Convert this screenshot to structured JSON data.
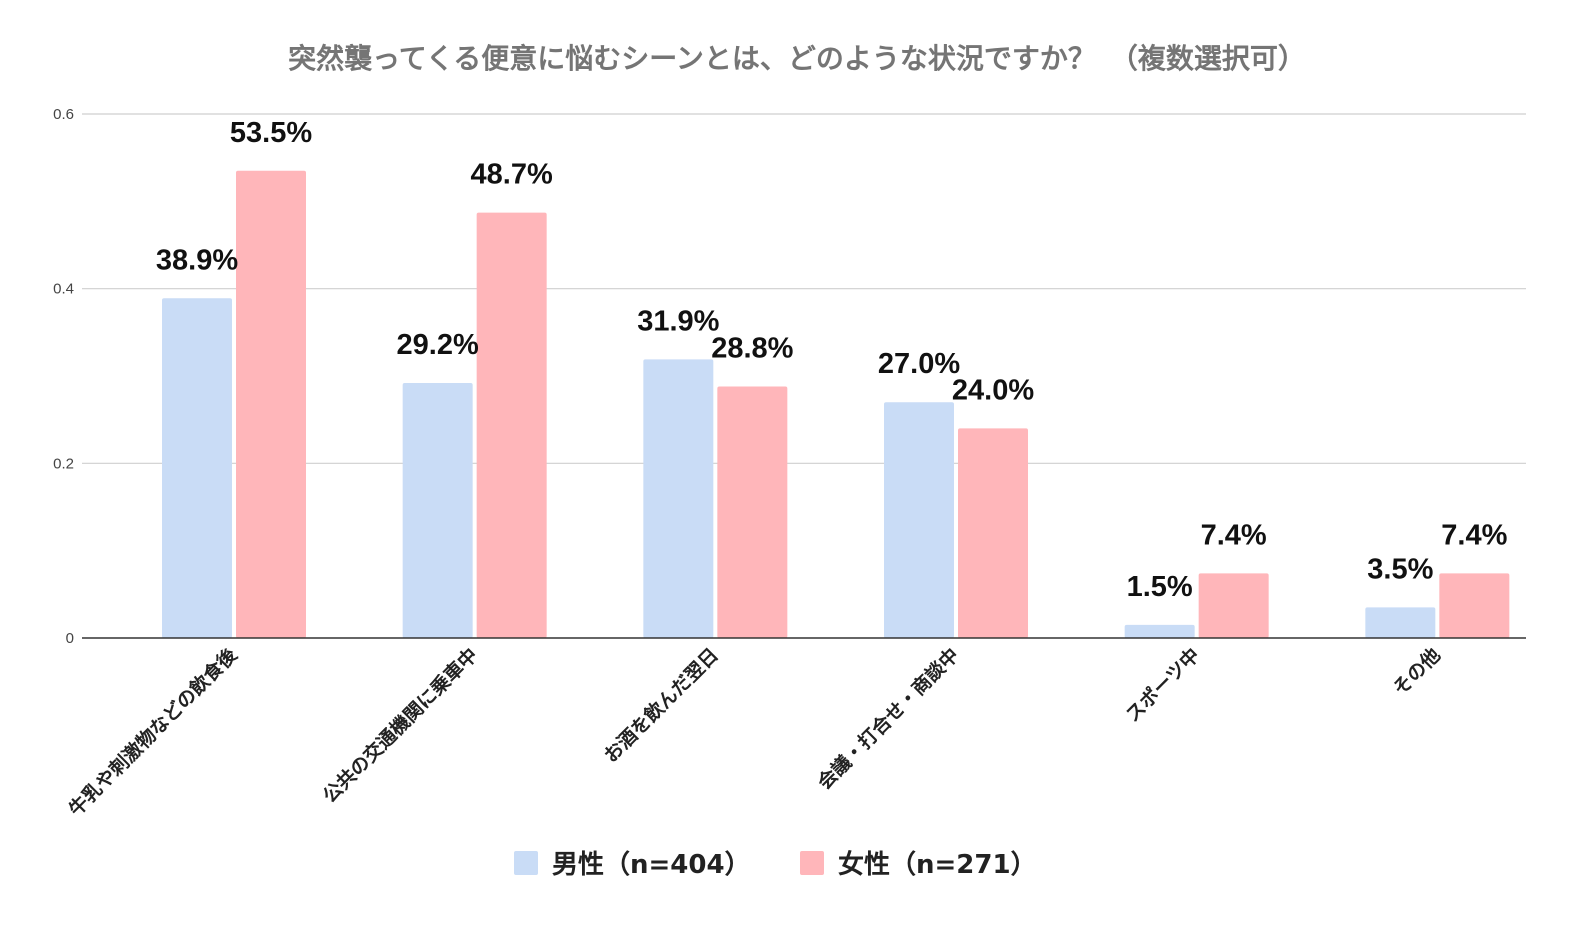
{
  "chart_data": {
    "type": "bar",
    "title": "突然襲ってくる便意に悩むシーンとは、どのような状況ですか？　（複数選択可）",
    "xlabel": "",
    "ylabel": "",
    "ylim": [
      0,
      0.6
    ],
    "yticks": [
      0,
      0.2,
      0.4,
      0.6
    ],
    "ytick_labels": [
      "0",
      "0.2",
      "0.4",
      "0.6"
    ],
    "grid": true,
    "legend_position": "bottom",
    "categories": [
      "牛乳や刺激物などの飲食後",
      "公共の交通機関に乗車中",
      "お酒を飲んだ翌日",
      "会議・打合せ・商談中",
      "スポーツ中",
      "その他"
    ],
    "series": [
      {
        "name": "男性（n=404）",
        "color": "#c9dcf6",
        "values": [
          0.389,
          0.292,
          0.319,
          0.27,
          0.015,
          0.035
        ],
        "labels": [
          "38.9%",
          "29.2%",
          "31.9%",
          "27.0%",
          "1.5%",
          "3.5%"
        ]
      },
      {
        "name": "女性（n=271）",
        "color": "#ffb6ba",
        "values": [
          0.535,
          0.487,
          0.288,
          0.24,
          0.074,
          0.074
        ],
        "labels": [
          "53.5%",
          "48.7%",
          "28.8%",
          "24.0%",
          "7.4%",
          "7.4%"
        ]
      }
    ]
  }
}
